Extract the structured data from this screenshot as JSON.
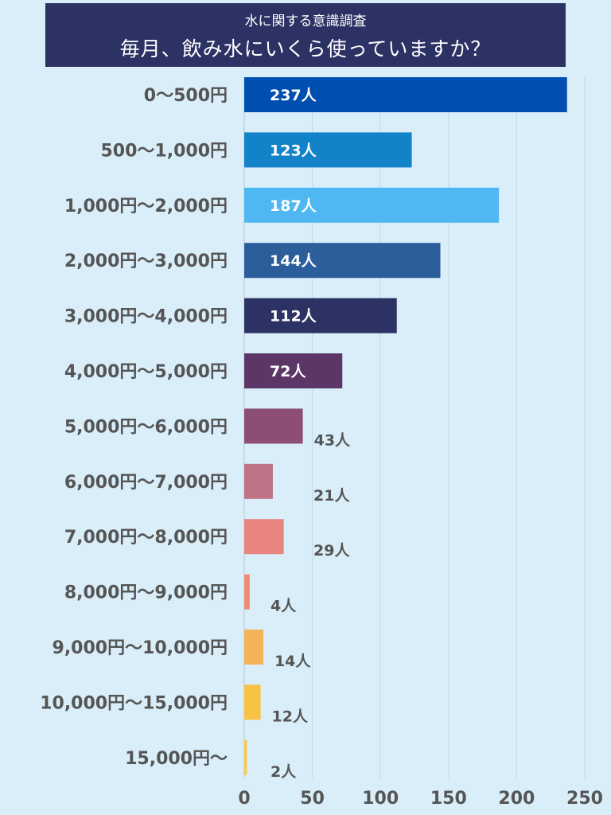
{
  "header": {
    "subtitle": "水に関する意識調査",
    "title": "毎月、飲み水にいくら使っていますか？"
  },
  "chart_data": {
    "type": "bar",
    "orientation": "horizontal",
    "title": "毎月、飲み水にいくら使っていますか？",
    "subtitle": "水に関する意識調査",
    "categories": [
      "0～500円",
      "500～1,000円",
      "1,000円～2,000円",
      "2,000円～3,000円",
      "3,000円～4,000円",
      "4,000円～5,000円",
      "5,000円～6,000円",
      "6,000円～7,000円",
      "7,000円～8,000円",
      "8,000円～9,000円",
      "9,000円～10,000円",
      "10,000円～15,000円",
      "15,000円～"
    ],
    "values": [
      237,
      123,
      187,
      144,
      112,
      72,
      43,
      21,
      29,
      4,
      14,
      12,
      2
    ],
    "value_labels": [
      "237人",
      "123人",
      "187人",
      "144人",
      "112人",
      "72人",
      "43人",
      "21人",
      "29人",
      "4人",
      "14人",
      "12人",
      "2人"
    ],
    "colors": [
      "#004fb0",
      "#1283c9",
      "#4fb8f2",
      "#2c5e9c",
      "#2c3264",
      "#5c3666",
      "#8c4e72",
      "#bf7185",
      "#e8857f",
      "#f08a70",
      "#f4b25a",
      "#f8c245",
      "#f7c94e"
    ],
    "label_colors": [
      "#ffffff",
      "#ffffff",
      "#ffffff",
      "#ffffff",
      "#ffffff",
      "#ffffff",
      "#555555",
      "#555555",
      "#555555",
      "#555555",
      "#555555",
      "#555555",
      "#555555"
    ],
    "xlim": [
      0,
      250
    ],
    "xticks": [
      0,
      50,
      100,
      150,
      200,
      250
    ],
    "grid": true
  }
}
